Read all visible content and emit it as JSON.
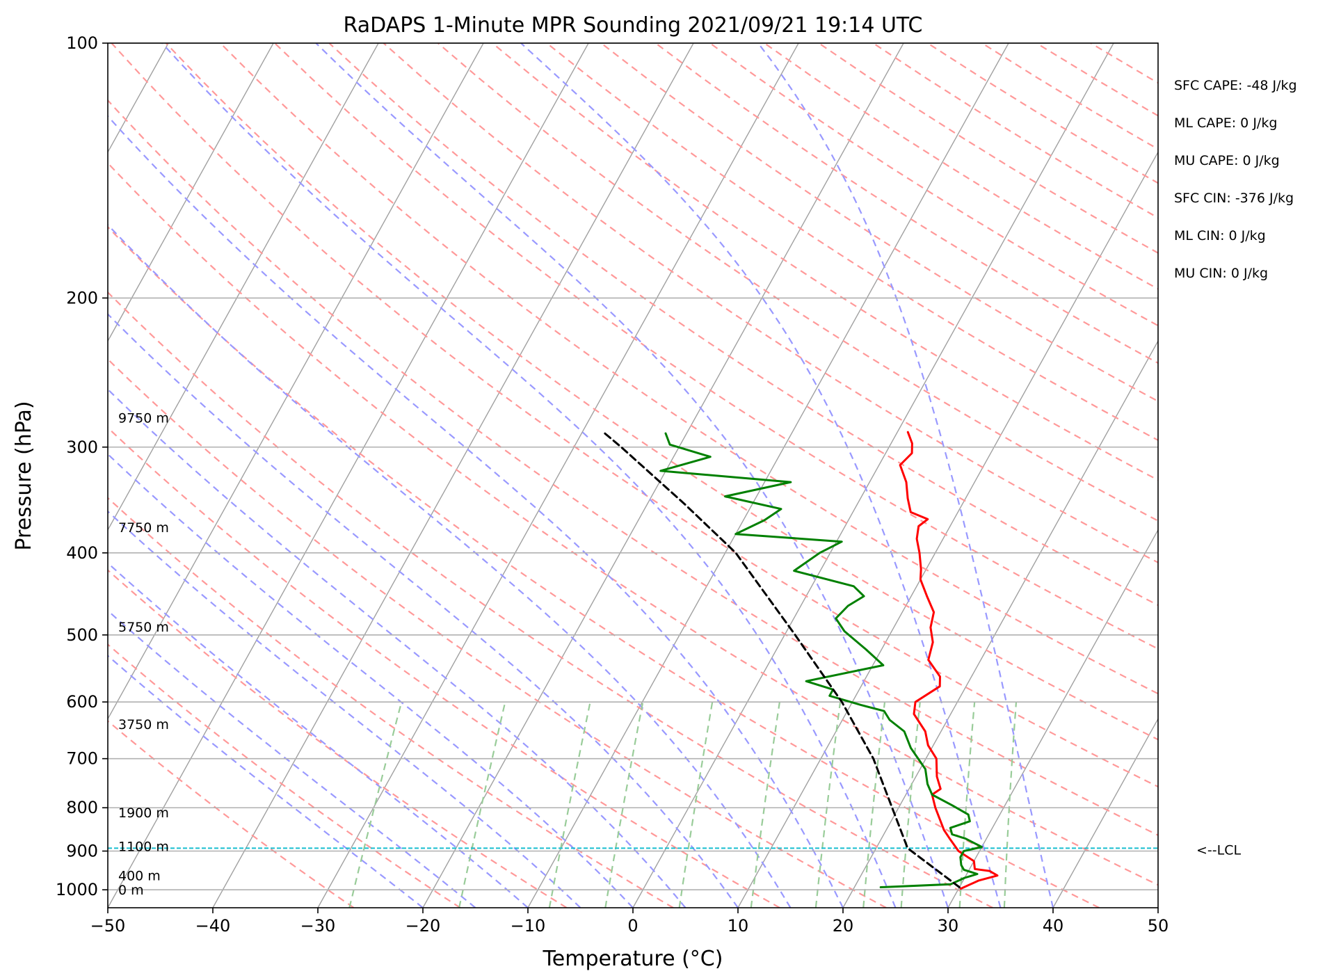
{
  "chart_data": {
    "type": "line",
    "title": "RaDAPS 1-Minute MPR Sounding 2021/09/21 19:14 UTC",
    "xlabel": "Temperature (°C)",
    "ylabel": "Pressure (hPa)",
    "xlim": [
      -50,
      50
    ],
    "ylim": [
      1050,
      100
    ],
    "y_scale": "log",
    "x_ticks": [
      "−50",
      "−40",
      "−30",
      "−20",
      "−10",
      "0",
      "10",
      "20",
      "30",
      "40",
      "50"
    ],
    "y_ticks": [
      "100",
      "200",
      "300",
      "400",
      "500",
      "600",
      "700",
      "800",
      "900",
      "1000"
    ],
    "grid": true,
    "colors": {
      "temperature": "#ff0000",
      "dewpoint": "#008000",
      "parcel": "#000000",
      "dry_adiabats": "#ff9999",
      "moist_adiabats": "#9999ff",
      "mixing_ratio": "#99cc99",
      "isotherms": "#a0a0a0",
      "lcl_line": "#17becf"
    },
    "series": [
      {
        "name": "Temperature",
        "points": [
          {
            "p": 997,
            "t": 30.2
          },
          {
            "p": 975,
            "t": 31.5
          },
          {
            "p": 962,
            "t": 33.0
          },
          {
            "p": 950,
            "t": 32.0
          },
          {
            "p": 945,
            "t": 30.5
          },
          {
            "p": 925,
            "t": 30.0
          },
          {
            "p": 900,
            "t": 28.0
          },
          {
            "p": 870,
            "t": 26.5
          },
          {
            "p": 850,
            "t": 25.5
          },
          {
            "p": 800,
            "t": 23.5
          },
          {
            "p": 772,
            "t": 22.5
          },
          {
            "p": 760,
            "t": 23.0
          },
          {
            "p": 735,
            "t": 22.0
          },
          {
            "p": 700,
            "t": 21.0
          },
          {
            "p": 675,
            "t": 19.5
          },
          {
            "p": 650,
            "t": 18.5
          },
          {
            "p": 620,
            "t": 16.5
          },
          {
            "p": 600,
            "t": 16.0
          },
          {
            "p": 575,
            "t": 17.5
          },
          {
            "p": 560,
            "t": 17.0
          },
          {
            "p": 535,
            "t": 15.0
          },
          {
            "p": 510,
            "t": 14.5
          },
          {
            "p": 490,
            "t": 13.5
          },
          {
            "p": 470,
            "t": 13.0
          },
          {
            "p": 450,
            "t": 11.5
          },
          {
            "p": 430,
            "t": 10.0
          },
          {
            "p": 418,
            "t": 9.5
          },
          {
            "p": 400,
            "t": 8.5
          },
          {
            "p": 385,
            "t": 7.5
          },
          {
            "p": 372,
            "t": 7.0
          },
          {
            "p": 365,
            "t": 7.5
          },
          {
            "p": 358,
            "t": 5.5
          },
          {
            "p": 345,
            "t": 4.5
          },
          {
            "p": 330,
            "t": 3.5
          },
          {
            "p": 315,
            "t": 2.0
          },
          {
            "p": 305,
            "t": 2.5
          },
          {
            "p": 297,
            "t": 2.0
          },
          {
            "p": 288,
            "t": 1.0
          }
        ]
      },
      {
        "name": "Dewpoint",
        "points": [
          {
            "p": 993,
            "t": 22.5
          },
          {
            "p": 985,
            "t": 29.0
          },
          {
            "p": 968,
            "t": 30.0
          },
          {
            "p": 958,
            "t": 31.0
          },
          {
            "p": 947,
            "t": 29.5
          },
          {
            "p": 935,
            "t": 29.0
          },
          {
            "p": 915,
            "t": 28.5
          },
          {
            "p": 900,
            "t": 28.5
          },
          {
            "p": 890,
            "t": 30.0
          },
          {
            "p": 870,
            "t": 28.0
          },
          {
            "p": 860,
            "t": 26.5
          },
          {
            "p": 845,
            "t": 26.0
          },
          {
            "p": 830,
            "t": 27.5
          },
          {
            "p": 815,
            "t": 27.0
          },
          {
            "p": 795,
            "t": 25.0
          },
          {
            "p": 772,
            "t": 22.5
          },
          {
            "p": 750,
            "t": 21.5
          },
          {
            "p": 720,
            "t": 20.5
          },
          {
            "p": 680,
            "t": 18.0
          },
          {
            "p": 650,
            "t": 16.5
          },
          {
            "p": 630,
            "t": 14.5
          },
          {
            "p": 615,
            "t": 13.5
          },
          {
            "p": 605,
            "t": 11.0
          },
          {
            "p": 590,
            "t": 7.5
          },
          {
            "p": 580,
            "t": 7.5
          },
          {
            "p": 567,
            "t": 4.5
          },
          {
            "p": 543,
            "t": 11.0
          },
          {
            "p": 520,
            "t": 8.5
          },
          {
            "p": 495,
            "t": 5.5
          },
          {
            "p": 478,
            "t": 4.0
          },
          {
            "p": 462,
            "t": 4.5
          },
          {
            "p": 450,
            "t": 5.5
          },
          {
            "p": 438,
            "t": 4.0
          },
          {
            "p": 420,
            "t": -2.5
          },
          {
            "p": 400,
            "t": -1.0
          },
          {
            "p": 388,
            "t": 0.5
          },
          {
            "p": 380,
            "t": -10.0
          },
          {
            "p": 366,
            "t": -8.0
          },
          {
            "p": 355,
            "t": -7.0
          },
          {
            "p": 343,
            "t": -13.0
          },
          {
            "p": 330,
            "t": -7.5
          },
          {
            "p": 320,
            "t": -20.5
          },
          {
            "p": 308,
            "t": -16.5
          },
          {
            "p": 298,
            "t": -21.0
          },
          {
            "p": 289,
            "t": -22.0
          }
        ]
      },
      {
        "name": "Parcel",
        "points": [
          {
            "p": 993,
            "t": 30.0
          },
          {
            "p": 893,
            "t": 23.0
          },
          {
            "p": 700,
            "t": 15.0
          },
          {
            "p": 600,
            "t": 9.0
          },
          {
            "p": 500,
            "t": 1.0
          },
          {
            "p": 400,
            "t": -9.0
          },
          {
            "p": 350,
            "t": -16.5
          },
          {
            "p": 300,
            "t": -25.5
          },
          {
            "p": 288,
            "t": -28.0
          }
        ]
      }
    ],
    "lcl": {
      "p": 893,
      "label": "<--LCL"
    },
    "height_labels": [
      {
        "p": 1000,
        "label": "0 m"
      },
      {
        "p": 962,
        "label": "400 m"
      },
      {
        "p": 888,
        "label": "1100 m"
      },
      {
        "p": 810,
        "label": "1900 m"
      },
      {
        "p": 637,
        "label": "3750 m"
      },
      {
        "p": 489,
        "label": "5750 m"
      },
      {
        "p": 373,
        "label": "7750 m"
      },
      {
        "p": 277,
        "label": "9750 m"
      }
    ],
    "stats": [
      "SFC CAPE: -48 J/kg",
      "ML CAPE: 0 J/kg",
      "MU CAPE: 0 J/kg",
      "SFC CIN: -376 J/kg",
      "ML CIN: 0 J/kg",
      "MU CIN: 0 J/kg"
    ]
  }
}
